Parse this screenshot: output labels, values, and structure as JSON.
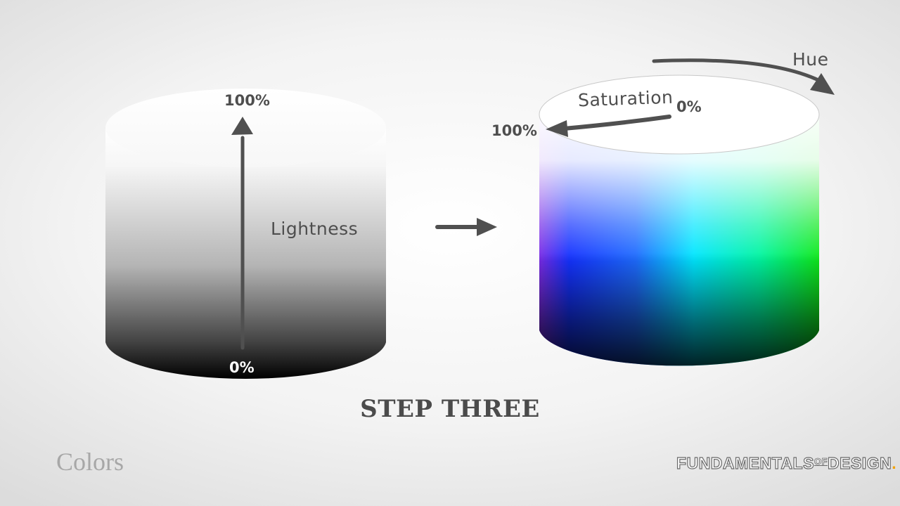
{
  "slide": {
    "step_title": "STEP THREE",
    "section_title": "Colors",
    "brand": {
      "word1": "FUNDAMENTALS",
      "word2": "OF",
      "word3": "DESIGN",
      "dot": "."
    }
  },
  "lightness_cylinder": {
    "top_label": "100%",
    "bottom_label": "0%",
    "axis_label": "Lightness"
  },
  "color_cylinder": {
    "saturation_label": "Saturation",
    "saturation_start_label": "0%",
    "saturation_end_label": "100%",
    "hue_label": "Hue"
  },
  "colors": {
    "annotation": "#4e4e4e",
    "brand_dot": "#f2a100"
  }
}
